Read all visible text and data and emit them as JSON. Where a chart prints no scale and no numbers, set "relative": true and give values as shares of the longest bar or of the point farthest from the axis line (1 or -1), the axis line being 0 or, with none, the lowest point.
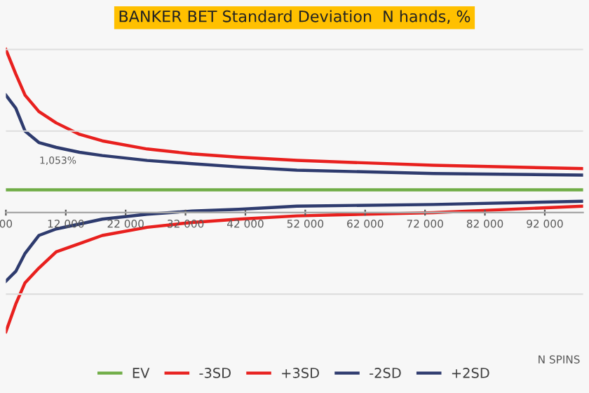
{
  "chart_data": {
    "type": "line",
    "title": "BANKER BET Standard Deviation  N hands, %",
    "xlabel": "N SPINS",
    "relative": true,
    "x": [
      2000,
      3650,
      5200,
      7500,
      10400,
      14300,
      18100,
      25600,
      33100,
      40900,
      50600,
      73400,
      98400
    ],
    "series": [
      {
        "name": "EV",
        "color": "#70ad47",
        "values": [
          0.14,
          0.14,
          0.14,
          0.14,
          0.14,
          0.14,
          0.14,
          0.14,
          0.14,
          0.14,
          0.14,
          0.14,
          0.14
        ]
      },
      {
        "name": "-3SD",
        "color": "#e8201e",
        "values": [
          -0.73,
          -0.56,
          -0.43,
          -0.34,
          -0.24,
          -0.19,
          -0.14,
          -0.09,
          -0.06,
          -0.04,
          -0.02,
          0.0,
          0.04
        ]
      },
      {
        "name": "+3SD",
        "color": "#e8201e",
        "values": [
          1.0,
          0.85,
          0.72,
          0.62,
          0.55,
          0.48,
          0.44,
          0.39,
          0.36,
          0.34,
          0.32,
          0.29,
          0.27
        ]
      },
      {
        "name": "-2SD",
        "color": "#2e3b6e",
        "values": [
          -0.42,
          -0.36,
          -0.25,
          -0.14,
          -0.1,
          -0.07,
          -0.04,
          -0.01,
          0.01,
          0.02,
          0.04,
          0.05,
          0.07
        ]
      },
      {
        "name": "+2SD",
        "color": "#2e3b6e",
        "values": [
          0.72,
          0.64,
          0.5,
          0.43,
          0.4,
          0.37,
          0.35,
          0.32,
          0.3,
          0.28,
          0.26,
          0.24,
          0.23
        ]
      }
    ],
    "xlim": [
      2000,
      98400
    ],
    "xticks": [
      {
        "value": 2000,
        "label": "00"
      },
      {
        "value": 12000,
        "label": "12 000"
      },
      {
        "value": 22000,
        "label": "22 000"
      },
      {
        "value": 32000,
        "label": "32 000"
      },
      {
        "value": 42000,
        "label": "42 000"
      },
      {
        "value": 52000,
        "label": "52 000"
      },
      {
        "value": 62000,
        "label": "62 000"
      },
      {
        "value": 72000,
        "label": "72 000"
      },
      {
        "value": 82000,
        "label": "82 000"
      },
      {
        "value": 92000,
        "label": "92 000"
      }
    ],
    "annotations": [
      "1,053%"
    ],
    "grid": "y",
    "legend": "bottom",
    "marker": "none",
    "line_style": "solid"
  }
}
